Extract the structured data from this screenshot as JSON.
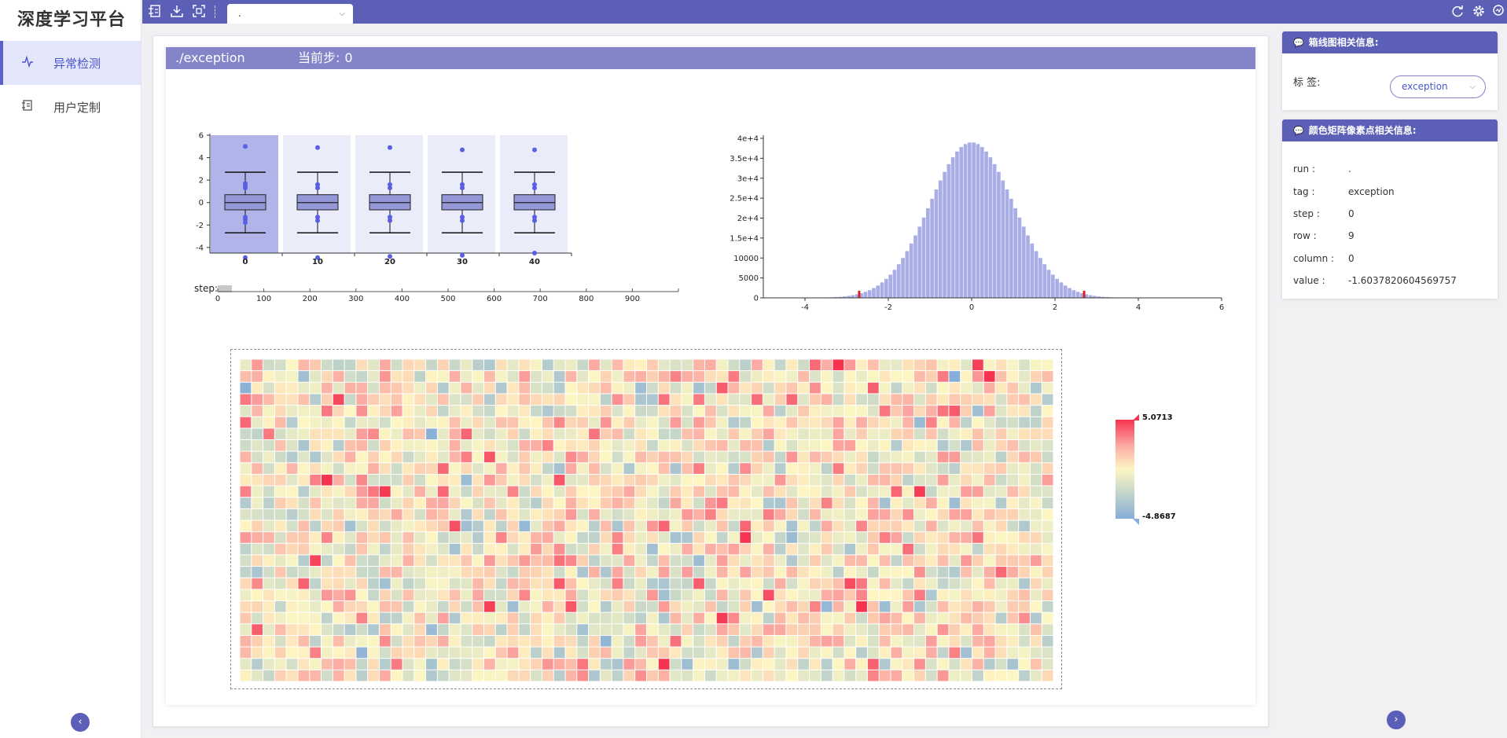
{
  "brand": "深度学习平台",
  "sidebar": {
    "items": [
      {
        "label": "异常检测",
        "icon": "pulse-icon",
        "active": true
      },
      {
        "label": "用户定制",
        "icon": "custom-icon",
        "active": false
      }
    ]
  },
  "topbar": {
    "tab_label": "."
  },
  "panel": {
    "run": "./exception",
    "step_label": "当前步:",
    "step_value": "0"
  },
  "slider": {
    "label": "step:",
    "ticks": [
      "0",
      "100",
      "200",
      "300",
      "400",
      "500",
      "600",
      "700",
      "800",
      "900"
    ]
  },
  "chart_data": [
    {
      "type": "box",
      "categories": [
        "0",
        "10",
        "20",
        "30",
        "40"
      ],
      "ylim": [
        -4,
        6
      ],
      "yticks": [
        "6",
        "4",
        "2",
        "0",
        "-2",
        "-4"
      ],
      "selected_category": "0",
      "boxes": [
        {
          "min": -2.7,
          "q1": -0.65,
          "median": 0.0,
          "q3": 0.7,
          "max": 2.7,
          "outliers": [
            5.0,
            1.7,
            1.5,
            1.3,
            -1.3,
            -1.5,
            -1.8,
            -4.9
          ]
        },
        {
          "min": -2.7,
          "q1": -0.65,
          "median": 0.0,
          "q3": 0.7,
          "max": 2.7,
          "outliers": [
            4.9,
            1.6,
            1.3,
            -1.3,
            -1.6,
            -4.9
          ]
        },
        {
          "min": -2.7,
          "q1": -0.65,
          "median": 0.0,
          "q3": 0.7,
          "max": 2.7,
          "outliers": [
            4.9,
            1.6,
            1.3,
            -1.3,
            -1.6,
            -4.8
          ]
        },
        {
          "min": -2.7,
          "q1": -0.65,
          "median": 0.0,
          "q3": 0.7,
          "max": 2.7,
          "outliers": [
            4.7,
            1.6,
            1.3,
            -1.3,
            -1.6,
            -4.7
          ]
        },
        {
          "min": -2.7,
          "q1": -0.65,
          "median": 0.0,
          "q3": 0.7,
          "max": 2.7,
          "outliers": [
            4.7,
            1.6,
            1.3,
            -1.3,
            -1.6,
            -4.5
          ]
        }
      ]
    },
    {
      "type": "bar",
      "xlim": [
        -5,
        6
      ],
      "xticks": [
        "-4",
        "-2",
        "0",
        "2",
        "4",
        "6"
      ],
      "ylim": [
        0,
        40000
      ],
      "yticks": [
        "4e+4",
        "3.5e+4",
        "3e+4",
        "2.5e+4",
        "2e+4",
        "1.5e+4",
        "10000",
        "5000",
        "0"
      ],
      "peak": 39000,
      "center": 0,
      "std": 1,
      "threshold_markers": [
        -2.7,
        2.7
      ],
      "color": "#a9aee6"
    },
    {
      "type": "heatmap",
      "rows": 28,
      "cols": 70,
      "vmax": 5.0713,
      "vmin": -4.8687,
      "vmax_label": "5.0713",
      "vmin_label": "-4.8687"
    }
  ],
  "boxplot_info": {
    "title": "箱线图相关信息:",
    "label_key": "标    签:",
    "tag_value": "exception"
  },
  "pixel_info": {
    "title": "颜色矩阵像素点相关信息:",
    "rows": [
      {
        "key": "run :",
        "value": "."
      },
      {
        "key": "tag :",
        "value": "exception"
      },
      {
        "key": "step :",
        "value": "0"
      },
      {
        "key": "row :",
        "value": "9"
      },
      {
        "key": "column :",
        "value": "0"
      },
      {
        "key": "value :",
        "value": "-1.6037820604569757"
      }
    ]
  },
  "colors": {
    "accent": "#5b5fb5",
    "header": "#8385c8",
    "box_fill": "#9598d8",
    "point": "#5a5ee6",
    "threshold": "#e02020"
  }
}
